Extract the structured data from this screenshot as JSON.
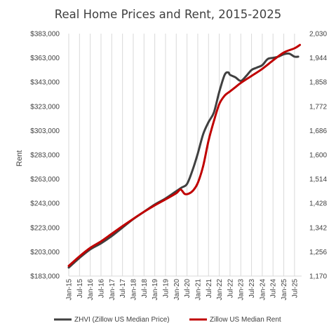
{
  "chart_data": {
    "type": "line",
    "title": "Real Home Prices and Rent, 2015-2025",
    "ylabel": "Rent",
    "y2label": "",
    "xlabel": "",
    "ylim": [
      183000,
      383000
    ],
    "y2lim": [
      1170,
      2030
    ],
    "yticks": [
      "$183,000",
      "$203,000",
      "$223,000",
      "$243,000",
      "$263,000",
      "$283,000",
      "$303,000",
      "$323,000",
      "$343,000",
      "$363,000",
      "$383,000"
    ],
    "y2ticks": [
      "1,170",
      "1,256",
      "1,342",
      "1,428",
      "1,514",
      "1,600",
      "1,686",
      "1,772",
      "1,858",
      "1,944",
      "2,030"
    ],
    "grid": "vertical",
    "legend": "bottom",
    "categories": [
      "Jan-15",
      "Jul-15",
      "Jan-16",
      "Jul-16",
      "Jan-17",
      "Jul-17",
      "Jan-18",
      "Jul-18",
      "Jan-19",
      "Jul-19",
      "Jan-20",
      "Jul-20",
      "Jan-21",
      "Jul-21",
      "Jan-22",
      "Jul-22",
      "Jan-23",
      "Jul-23",
      "Jan-24",
      "Jul-24",
      "Jan-25",
      "Jul-25"
    ],
    "series": [
      {
        "name": "ZHVI (Zillow US Median Price)",
        "color": "#404040",
        "axis": "left",
        "x": [
          2015.0,
          2015.5,
          2016.0,
          2016.5,
          2017.0,
          2017.5,
          2018.0,
          2018.5,
          2019.0,
          2019.5,
          2020.0,
          2020.25,
          2020.5,
          2020.75,
          2021.0,
          2021.25,
          2021.5,
          2021.75,
          2022.0,
          2022.25,
          2022.42,
          2022.5,
          2022.75,
          2023.0,
          2023.25,
          2023.5,
          2023.75,
          2024.0,
          2024.25,
          2024.5,
          2024.75,
          2025.0,
          2025.25,
          2025.5,
          2025.67
        ],
        "values": [
          190000,
          198000,
          205000,
          210000,
          216000,
          223000,
          230000,
          236000,
          242000,
          247000,
          253000,
          256000,
          259000,
          270000,
          284000,
          300000,
          310000,
          318000,
          335000,
          349000,
          351000,
          349000,
          347000,
          344000,
          348000,
          353000,
          355000,
          357000,
          362000,
          363000,
          364000,
          366000,
          366500,
          364000,
          364000
        ]
      },
      {
        "name": "Zillow US Median Rent",
        "color": "#c00000",
        "axis": "right",
        "x": [
          2015.0,
          2015.5,
          2016.0,
          2016.5,
          2017.0,
          2017.5,
          2018.0,
          2018.5,
          2019.0,
          2019.5,
          2020.0,
          2020.2,
          2020.4,
          2020.6,
          2020.8,
          2021.0,
          2021.25,
          2021.5,
          2021.75,
          2022.0,
          2022.25,
          2022.5,
          2022.75,
          2023.0,
          2023.5,
          2024.0,
          2024.5,
          2025.0,
          2025.5,
          2025.75
        ],
        "values": [
          1206,
          1240,
          1270,
          1293,
          1320,
          1347,
          1373,
          1398,
          1421,
          1442,
          1464,
          1477,
          1461,
          1463,
          1475,
          1500,
          1560,
          1650,
          1720,
          1780,
          1810,
          1825,
          1840,
          1855,
          1880,
          1905,
          1935,
          1963,
          1978,
          1990
        ]
      }
    ]
  }
}
